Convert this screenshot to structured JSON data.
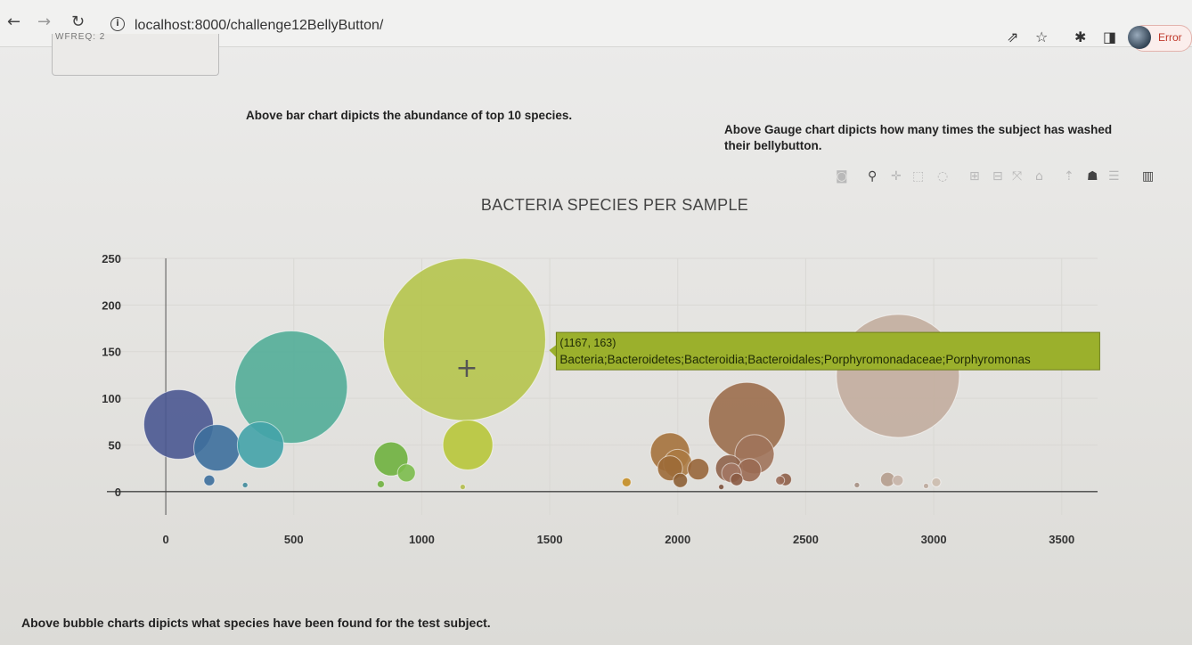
{
  "browser": {
    "url": "localhost:8000/challenge12BellyButton/",
    "error_label": "Error",
    "panel_text": "WFREQ: 2"
  },
  "captions": {
    "bar": "Above bar chart dipicts the abundance of top 10 species.",
    "gauge_line1": "Above Gauge chart dipicts how many times the subject has washed",
    "gauge_line2": "their bellybutton.",
    "bubble": "Above bubble charts dipicts what species have been found for the test subject."
  },
  "colors": {
    "tooltip_bg": "#9bb02c",
    "tooltip_text": "#1f2a05"
  },
  "chart_data": {
    "type": "scatter",
    "title": "BACTERIA SPECIES PER SAMPLE",
    "xlim": [
      -230,
      3640
    ],
    "ylim": [
      -25,
      250
    ],
    "xticks": [
      0,
      500,
      1000,
      1500,
      2000,
      2500,
      3000,
      3500
    ],
    "yticks": [
      0,
      50,
      100,
      150,
      200,
      250
    ],
    "points": [
      {
        "x": 50,
        "y": 72,
        "r": 39,
        "color": "#4a5891"
      },
      {
        "x": 200,
        "y": 47,
        "r": 26,
        "color": "#3d6f9c"
      },
      {
        "x": 170,
        "y": 12,
        "r": 6,
        "color": "#3d6f9c"
      },
      {
        "x": 370,
        "y": 50,
        "r": 26,
        "color": "#44a3a8"
      },
      {
        "x": 310,
        "y": 7,
        "r": 3,
        "color": "#3f8a9a"
      },
      {
        "x": 490,
        "y": 112,
        "r": 63,
        "color": "#52ad98"
      },
      {
        "x": 880,
        "y": 35,
        "r": 19,
        "color": "#6fb13e"
      },
      {
        "x": 940,
        "y": 20,
        "r": 10,
        "color": "#7cbc4c"
      },
      {
        "x": 840,
        "y": 8,
        "r": 4,
        "color": "#6fb13e"
      },
      {
        "x": 1167,
        "y": 163,
        "r": 91,
        "color": "#b5c44c"
      },
      {
        "x": 1180,
        "y": 50,
        "r": 28,
        "color": "#b8c63a"
      },
      {
        "x": 1160,
        "y": 5,
        "r": 3,
        "color": "#b3bd4c"
      },
      {
        "x": 1800,
        "y": 10,
        "r": 5,
        "color": "#c48d23"
      },
      {
        "x": 1970,
        "y": 42,
        "r": 22,
        "color": "#a5723c"
      },
      {
        "x": 2000,
        "y": 30,
        "r": 16,
        "color": "#ab7a43"
      },
      {
        "x": 1970,
        "y": 25,
        "r": 14,
        "color": "#9c6a37"
      },
      {
        "x": 2080,
        "y": 24,
        "r": 12,
        "color": "#98663a"
      },
      {
        "x": 2010,
        "y": 12,
        "r": 8,
        "color": "#8d5f34"
      },
      {
        "x": 2270,
        "y": 76,
        "r": 43,
        "color": "#9b6e4c"
      },
      {
        "x": 2300,
        "y": 40,
        "r": 22,
        "color": "#a0735a"
      },
      {
        "x": 2200,
        "y": 25,
        "r": 15,
        "color": "#8f634a"
      },
      {
        "x": 2280,
        "y": 23,
        "r": 13,
        "color": "#9a6a52"
      },
      {
        "x": 2210,
        "y": 20,
        "r": 11,
        "color": "#a27662"
      },
      {
        "x": 2230,
        "y": 13,
        "r": 7,
        "color": "#8a5a42"
      },
      {
        "x": 2420,
        "y": 13,
        "r": 7,
        "color": "#8e5f48"
      },
      {
        "x": 2400,
        "y": 12,
        "r": 5,
        "color": "#9a6d59"
      },
      {
        "x": 2170,
        "y": 5,
        "r": 3,
        "color": "#7c523c"
      },
      {
        "x": 2860,
        "y": 124,
        "r": 69,
        "color": "#c2ad9e"
      },
      {
        "x": 2820,
        "y": 13,
        "r": 8,
        "color": "#b59d8d"
      },
      {
        "x": 2860,
        "y": 12,
        "r": 6,
        "color": "#c7b4a7"
      },
      {
        "x": 2700,
        "y": 7,
        "r": 3,
        "color": "#a58f82"
      },
      {
        "x": 3010,
        "y": 10,
        "r": 5,
        "color": "#ccbcae"
      },
      {
        "x": 2970,
        "y": 6,
        "r": 3,
        "color": "#bba99b"
      }
    ],
    "hover": {
      "x": 1167,
      "y": 163,
      "coord_label": "(1167, 163)",
      "text": "Bacteria;Bacteroidetes;Bacteroidia;Bacteroidales;Porphyromonadaceae;Porphyromonas"
    }
  }
}
